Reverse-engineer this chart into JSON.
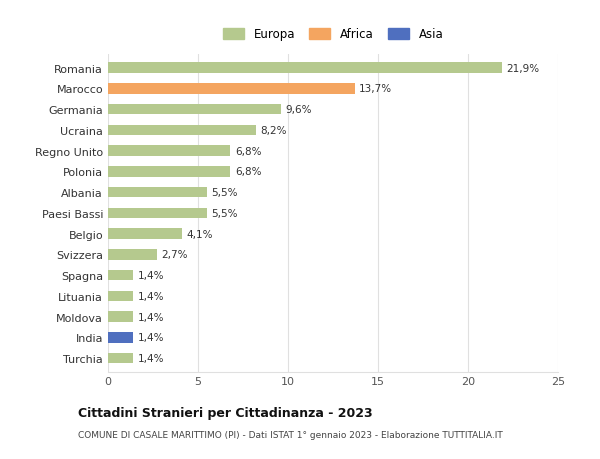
{
  "countries": [
    "Romania",
    "Marocco",
    "Germania",
    "Ucraina",
    "Regno Unito",
    "Polonia",
    "Albania",
    "Paesi Bassi",
    "Belgio",
    "Svizzera",
    "Spagna",
    "Lituania",
    "Moldova",
    "India",
    "Turchia"
  ],
  "values": [
    21.9,
    13.7,
    9.6,
    8.2,
    6.8,
    6.8,
    5.5,
    5.5,
    4.1,
    2.7,
    1.4,
    1.4,
    1.4,
    1.4,
    1.4
  ],
  "labels": [
    "21,9%",
    "13,7%",
    "9,6%",
    "8,2%",
    "6,8%",
    "6,8%",
    "5,5%",
    "5,5%",
    "4,1%",
    "2,7%",
    "1,4%",
    "1,4%",
    "1,4%",
    "1,4%",
    "1,4%"
  ],
  "continent": [
    "Europa",
    "Africa",
    "Europa",
    "Europa",
    "Europa",
    "Europa",
    "Europa",
    "Europa",
    "Europa",
    "Europa",
    "Europa",
    "Europa",
    "Europa",
    "Asia",
    "Europa"
  ],
  "colors": {
    "Europa": "#b5c98e",
    "Africa": "#f4a560",
    "Asia": "#4f6fbf"
  },
  "legend": [
    {
      "label": "Europa",
      "color": "#b5c98e"
    },
    {
      "label": "Africa",
      "color": "#f4a560"
    },
    {
      "label": "Asia",
      "color": "#4f6fbf"
    }
  ],
  "xlim": [
    0,
    25
  ],
  "xticks": [
    0,
    5,
    10,
    15,
    20,
    25
  ],
  "title": "Cittadini Stranieri per Cittadinanza - 2023",
  "subtitle": "COMUNE DI CASALE MARITTIMO (PI) - Dati ISTAT 1° gennaio 2023 - Elaborazione TUTTITALIA.IT",
  "background_color": "#ffffff",
  "grid_color": "#e0e0e0",
  "bar_height": 0.5
}
